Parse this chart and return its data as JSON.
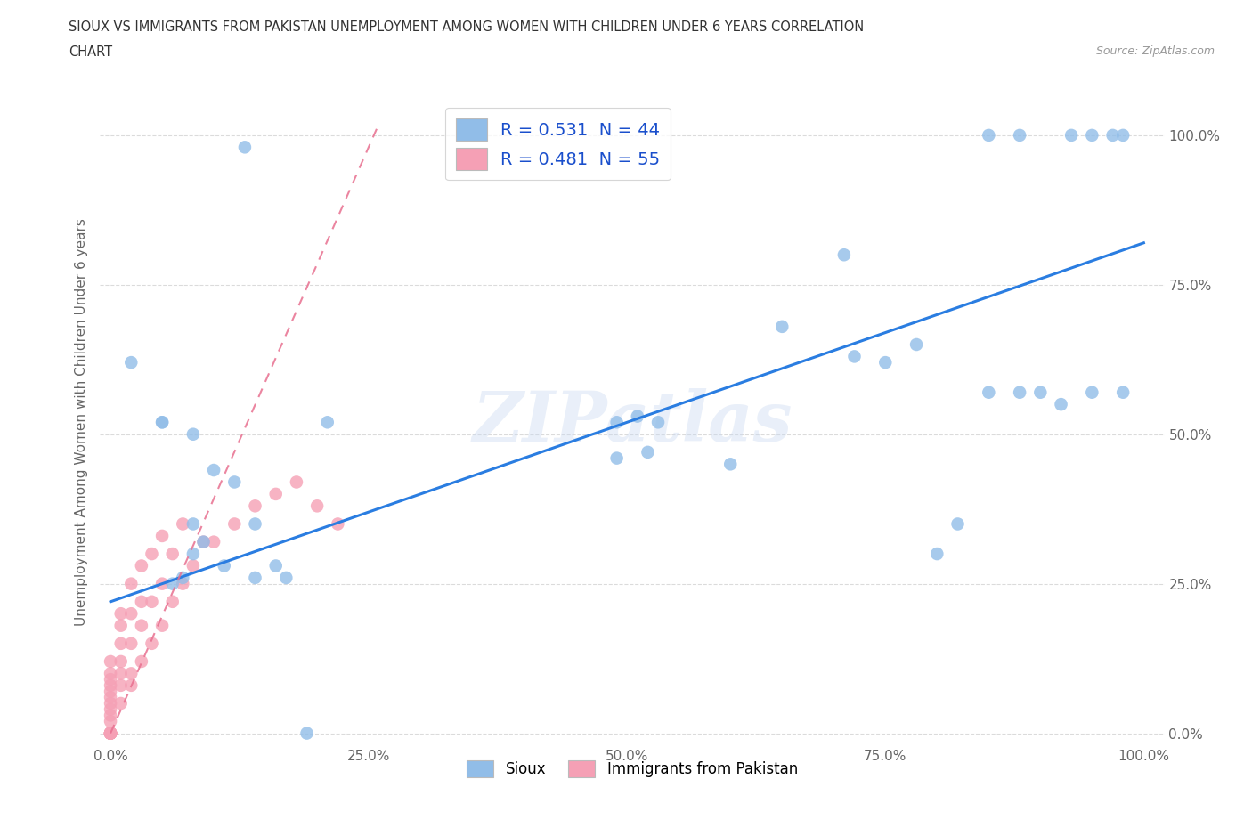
{
  "title_line1": "SIOUX VS IMMIGRANTS FROM PAKISTAN UNEMPLOYMENT AMONG WOMEN WITH CHILDREN UNDER 6 YEARS CORRELATION",
  "title_line2": "CHART",
  "source": "Source: ZipAtlas.com",
  "ylabel": "Unemployment Among Women with Children Under 6 years",
  "xlim": [
    -0.01,
    1.02
  ],
  "ylim": [
    -0.02,
    1.06
  ],
  "xticks": [
    0,
    0.25,
    0.5,
    0.75,
    1.0
  ],
  "yticks": [
    0,
    0.25,
    0.5,
    0.75,
    1.0
  ],
  "xticklabels": [
    "0.0%",
    "25.0%",
    "50.0%",
    "75.0%",
    "100.0%"
  ],
  "yticklabels": [
    "0.0%",
    "25.0%",
    "50.0%",
    "75.0%",
    "100.0%"
  ],
  "sioux_R": 0.531,
  "sioux_N": 44,
  "pakistan_R": 0.481,
  "pakistan_N": 55,
  "sioux_color": "#91bde8",
  "pakistan_color": "#f5a0b5",
  "sioux_line_color": "#2a7de1",
  "pakistan_line_color": "#e87090",
  "watermark": "ZIPatlas",
  "sioux_x": [
    0.13,
    0.02,
    0.05,
    0.08,
    0.1,
    0.12,
    0.14,
    0.16,
    0.17,
    0.19,
    0.21,
    0.05,
    0.08,
    0.11,
    0.14,
    0.49,
    0.51,
    0.53,
    0.49,
    0.52,
    0.6,
    0.65,
    0.71,
    0.72,
    0.75,
    0.78,
    0.8,
    0.82,
    0.85,
    0.88,
    0.9,
    0.92,
    0.95,
    0.98,
    0.85,
    0.88,
    0.93,
    0.95,
    0.97,
    0.98,
    0.06,
    0.07,
    0.08,
    0.09
  ],
  "sioux_y": [
    0.98,
    0.62,
    0.52,
    0.5,
    0.44,
    0.42,
    0.35,
    0.28,
    0.26,
    0.0,
    0.52,
    0.52,
    0.35,
    0.28,
    0.26,
    0.52,
    0.53,
    0.52,
    0.46,
    0.47,
    0.45,
    0.68,
    0.8,
    0.63,
    0.62,
    0.65,
    0.3,
    0.35,
    0.57,
    0.57,
    0.57,
    0.55,
    0.57,
    0.57,
    1.0,
    1.0,
    1.0,
    1.0,
    1.0,
    1.0,
    0.25,
    0.26,
    0.3,
    0.32
  ],
  "pakistan_x": [
    0.0,
    0.0,
    0.0,
    0.0,
    0.0,
    0.0,
    0.0,
    0.0,
    0.0,
    0.0,
    0.0,
    0.0,
    0.0,
    0.0,
    0.0,
    0.0,
    0.0,
    0.0,
    0.0,
    0.0,
    0.01,
    0.01,
    0.01,
    0.01,
    0.01,
    0.01,
    0.01,
    0.02,
    0.02,
    0.02,
    0.02,
    0.02,
    0.03,
    0.03,
    0.03,
    0.03,
    0.04,
    0.04,
    0.04,
    0.05,
    0.05,
    0.05,
    0.06,
    0.06,
    0.07,
    0.07,
    0.08,
    0.09,
    0.1,
    0.12,
    0.14,
    0.16,
    0.18,
    0.2,
    0.22
  ],
  "pakistan_y": [
    0.0,
    0.0,
    0.0,
    0.0,
    0.0,
    0.0,
    0.0,
    0.0,
    0.0,
    0.0,
    0.02,
    0.03,
    0.04,
    0.05,
    0.06,
    0.07,
    0.08,
    0.09,
    0.1,
    0.12,
    0.05,
    0.08,
    0.1,
    0.12,
    0.15,
    0.18,
    0.2,
    0.08,
    0.1,
    0.15,
    0.2,
    0.25,
    0.12,
    0.18,
    0.22,
    0.28,
    0.15,
    0.22,
    0.3,
    0.18,
    0.25,
    0.33,
    0.22,
    0.3,
    0.25,
    0.35,
    0.28,
    0.32,
    0.32,
    0.35,
    0.38,
    0.4,
    0.42,
    0.38,
    0.35
  ],
  "sioux_line_x": [
    0.0,
    1.0
  ],
  "sioux_line_y": [
    0.22,
    0.82
  ],
  "pakistan_line_x": [
    0.0,
    0.26
  ],
  "pakistan_line_y": [
    0.0,
    1.02
  ],
  "background_color": "#ffffff",
  "grid_color": "#cccccc",
  "title_color": "#333333",
  "axis_color": "#666666"
}
